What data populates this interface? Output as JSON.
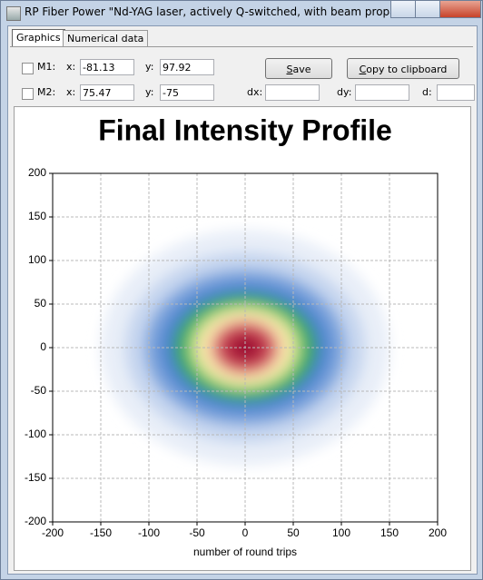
{
  "window": {
    "title": "RP Fiber Power \"Nd-YAG laser, actively Q-switched, with beam propagati..."
  },
  "tabs": [
    "Graphics",
    "Numerical data"
  ],
  "markers": [
    {
      "label": "M1:",
      "x_label": "x:",
      "x": "-81.13",
      "y_label": "y:",
      "y": "97.92"
    },
    {
      "label": "M2:",
      "x_label": "x:",
      "x": "75.47",
      "y_label": "y:",
      "y": "-75"
    }
  ],
  "buttons": [
    "Save",
    "Copy to clipboard"
  ],
  "deltas": [
    "dx:",
    "dy:",
    "d:"
  ],
  "chart_data": {
    "type": "heatmap",
    "title": "Final Intensity Profile",
    "x_label": "number of round trips",
    "xlim": [
      -200,
      200
    ],
    "ylim": [
      -200,
      200
    ],
    "xticks": [
      -200,
      -150,
      -100,
      -50,
      0,
      50,
      100,
      150,
      200
    ],
    "yticks": [
      -200,
      -150,
      -100,
      -50,
      0,
      50,
      100,
      150,
      200
    ],
    "grid": true,
    "center": [
      0,
      0
    ],
    "contours": [
      {
        "color": "#e8eef8",
        "rx": 150,
        "ry": 135
      },
      {
        "color": "#c6d6ef",
        "rx": 125,
        "ry": 110
      },
      {
        "color": "#7fa6dd",
        "rx": 105,
        "ry": 90
      },
      {
        "color": "#4f86cf",
        "rx": 90,
        "ry": 76
      },
      {
        "color": "#36a06a",
        "rx": 75,
        "ry": 62
      },
      {
        "color": "#8ccf7a",
        "rx": 62,
        "ry": 52
      },
      {
        "color": "#f2e8a0",
        "rx": 52,
        "ry": 44
      },
      {
        "color": "#f6dcb0",
        "rx": 42,
        "ry": 37
      },
      {
        "color": "#d9676e",
        "rx": 34,
        "ry": 30
      },
      {
        "color": "#b82a45",
        "rx": 24,
        "ry": 21
      },
      {
        "color": "#9b1030",
        "rx": 12,
        "ry": 11
      }
    ]
  }
}
